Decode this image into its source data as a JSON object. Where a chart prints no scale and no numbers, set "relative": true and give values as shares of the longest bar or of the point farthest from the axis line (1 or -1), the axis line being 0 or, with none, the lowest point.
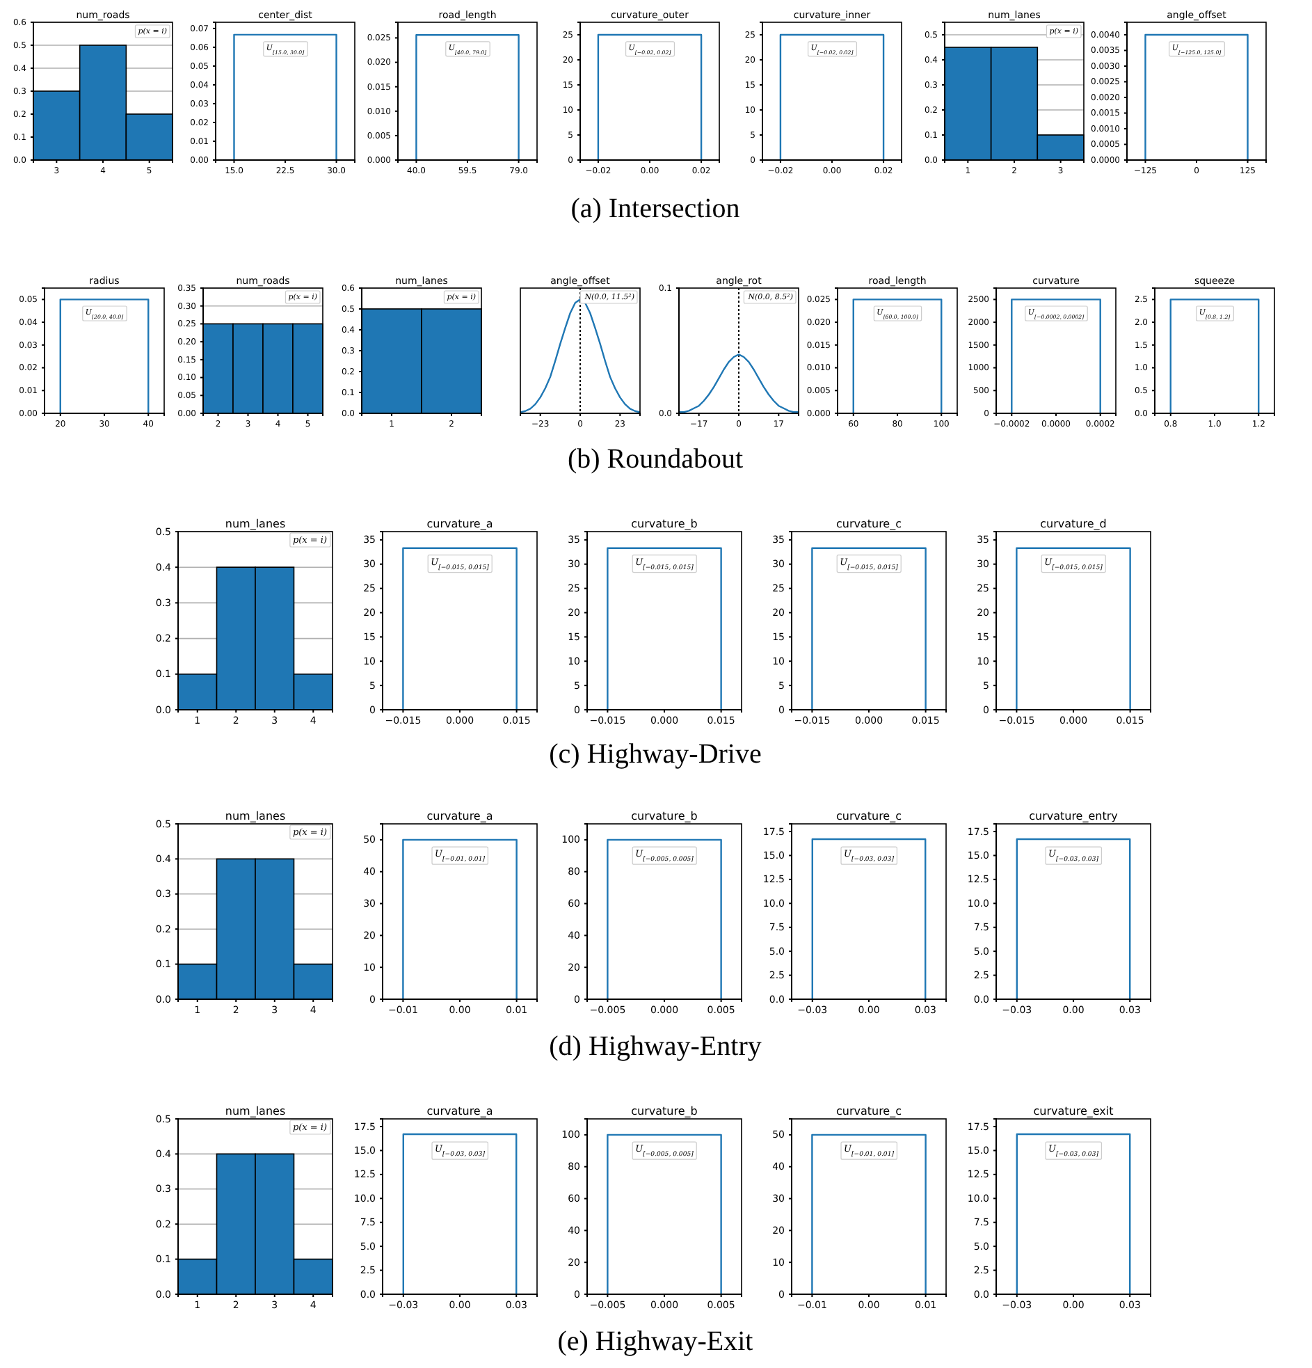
{
  "chart_data": [
    {
      "type": "bar",
      "title": "num_roads",
      "categories": [
        "3",
        "4",
        "5"
      ],
      "values": [
        0.3,
        0.5,
        0.2
      ],
      "color": "#1f77b4",
      "ylim": [
        0,
        0.6
      ],
      "yticks": [
        {
          "value": 0,
          "label": "0.0"
        },
        {
          "value": 0.1,
          "label": "0.1"
        },
        {
          "value": 0.2,
          "label": "0.2"
        },
        {
          "value": 0.3,
          "label": "0.3"
        },
        {
          "value": 0.4,
          "label": "0.4"
        },
        {
          "value": 0.5,
          "label": "0.5"
        },
        {
          "value": 0.6,
          "label": "0.6"
        }
      ],
      "grid": "y",
      "annotations": [
        "p(x = i)"
      ]
    },
    {
      "type": "line",
      "title": "center_dist",
      "x": [
        15,
        15,
        30,
        30
      ],
      "values": [
        0,
        0.0667,
        0.0667,
        0
      ],
      "color": "#1f77b4",
      "xlim": [
        12.3,
        32.7
      ],
      "xticks": [
        {
          "value": 15,
          "label": "15.0"
        },
        {
          "value": 22.5,
          "label": "22.5"
        },
        {
          "value": 30,
          "label": "30.0"
        }
      ],
      "ylim": [
        0,
        0.0733
      ],
      "yticks": [
        {
          "value": 0,
          "label": "0.00"
        },
        {
          "value": 0.01,
          "label": "0.01"
        },
        {
          "value": 0.02,
          "label": "0.02"
        },
        {
          "value": 0.03,
          "label": "0.03"
        },
        {
          "value": 0.04,
          "label": "0.04"
        },
        {
          "value": 0.05,
          "label": "0.05"
        },
        {
          "value": 0.06,
          "label": "0.06"
        },
        {
          "value": 0.07,
          "label": "0.07"
        }
      ],
      "annotations": [
        "U$_{[15.0, 30.0]}$"
      ]
    },
    {
      "type": "line",
      "title": "road_length",
      "x": [
        40,
        40,
        79,
        79
      ],
      "values": [
        0,
        0.0256,
        0.0256,
        0
      ],
      "color": "#1f77b4",
      "xlim": [
        33,
        86
      ],
      "xticks": [
        {
          "value": 40,
          "label": "40.0"
        },
        {
          "value": 59.5,
          "label": "59.5"
        },
        {
          "value": 79,
          "label": "79.0"
        }
      ],
      "ylim": [
        0,
        0.0282
      ],
      "yticks": [
        {
          "value": 0,
          "label": "0.000"
        },
        {
          "value": 0.005,
          "label": "0.005"
        },
        {
          "value": 0.01,
          "label": "0.010"
        },
        {
          "value": 0.015,
          "label": "0.015"
        },
        {
          "value": 0.02,
          "label": "0.020"
        },
        {
          "value": 0.025,
          "label": "0.025"
        }
      ],
      "annotations": [
        "U$_{[40.0, 79.0]}$"
      ]
    },
    {
      "type": "line",
      "title": "curvature_outer",
      "x": [
        -0.02,
        -0.02,
        0.02,
        0.02
      ],
      "values": [
        0,
        25,
        25,
        0
      ],
      "color": "#1f77b4",
      "xlim": [
        -0.027,
        0.027
      ],
      "xticks": [
        {
          "value": -0.02,
          "label": "−0.02"
        },
        {
          "value": 0,
          "label": "0.00"
        },
        {
          "value": 0.02,
          "label": "0.02"
        }
      ],
      "ylim": [
        0,
        27.5
      ],
      "yticks": [
        0,
        5,
        10,
        15,
        20,
        25
      ],
      "annotations": [
        "U$_{[−0.02, 0.02]}$"
      ]
    },
    {
      "type": "line",
      "title": "curvature_inner",
      "x": [
        -0.02,
        -0.02,
        0.02,
        0.02
      ],
      "values": [
        0,
        25,
        25,
        0
      ],
      "color": "#1f77b4",
      "xlim": [
        -0.027,
        0.027
      ],
      "xticks": [
        {
          "value": -0.02,
          "label": "−0.02"
        },
        {
          "value": 0,
          "label": "0.00"
        },
        {
          "value": 0.02,
          "label": "0.02"
        }
      ],
      "ylim": [
        0,
        27.5
      ],
      "yticks": [
        0,
        5,
        10,
        15,
        20,
        25
      ],
      "annotations": [
        "U$_{[−0.02, 0.02]}$"
      ]
    },
    {
      "type": "bar",
      "title": "num_lanes",
      "categories": [
        "1",
        "2",
        "3"
      ],
      "values": [
        0.45,
        0.45,
        0.1
      ],
      "color": "#1f77b4",
      "ylim": [
        0,
        0.55
      ],
      "yticks": [
        {
          "value": 0,
          "label": "0.0"
        },
        {
          "value": 0.1,
          "label": "0.1"
        },
        {
          "value": 0.2,
          "label": "0.2"
        },
        {
          "value": 0.3,
          "label": "0.3"
        },
        {
          "value": 0.4,
          "label": "0.4"
        },
        {
          "value": 0.5,
          "label": "0.5"
        }
      ],
      "grid": "y",
      "annotations": [
        "p(x = i)"
      ]
    },
    {
      "type": "line",
      "title": "angle_offset",
      "x": [
        -125,
        -125,
        125,
        125
      ],
      "values": [
        0,
        0.004,
        0.004,
        0
      ],
      "color": "#1f77b4",
      "xlim": [
        -170,
        170
      ],
      "xticks": [
        {
          "value": -125,
          "label": "−125"
        },
        0,
        125
      ],
      "ylim": [
        0,
        0.0044
      ],
      "yticks": [
        {
          "value": 0,
          "label": "0.0000"
        },
        {
          "value": 0.0005,
          "label": "0.0005"
        },
        {
          "value": 0.001,
          "label": "0.0010"
        },
        {
          "value": 0.0015,
          "label": "0.0015"
        },
        {
          "value": 0.002,
          "label": "0.0020"
        },
        {
          "value": 0.0025,
          "label": "0.0025"
        },
        {
          "value": 0.003,
          "label": "0.0030"
        },
        {
          "value": 0.0035,
          "label": "0.0035"
        },
        {
          "value": 0.004,
          "label": "0.0040"
        }
      ],
      "annotations": [
        "U$_{[−125.0, 125.0]}$"
      ]
    },
    {
      "type": "other",
      "title": "(a) Intersection"
    },
    {
      "type": "line",
      "title": "radius",
      "x": [
        20,
        20,
        40,
        40
      ],
      "values": [
        0,
        0.05,
        0.05,
        0
      ],
      "color": "#1f77b4",
      "xlim": [
        16.4,
        43.6
      ],
      "xticks": [
        20,
        30,
        40
      ],
      "ylim": [
        0,
        0.055
      ],
      "yticks": [
        {
          "value": 0,
          "label": "0.00"
        },
        {
          "value": 0.01,
          "label": "0.01"
        },
        {
          "value": 0.02,
          "label": "0.02"
        },
        {
          "value": 0.03,
          "label": "0.03"
        },
        {
          "value": 0.04,
          "label": "0.04"
        },
        {
          "value": 0.05,
          "label": "0.05"
        }
      ],
      "annotations": [
        "U$_{[20.0, 40.0]}$"
      ]
    },
    {
      "type": "bar",
      "title": "num_roads",
      "categories": [
        "2",
        "3",
        "4",
        "5"
      ],
      "values": [
        0.25,
        0.25,
        0.25,
        0.25
      ],
      "color": "#1f77b4",
      "ylim": [
        0,
        0.35
      ],
      "yticks": [
        {
          "value": 0,
          "label": "0.00"
        },
        {
          "value": 0.05,
          "label": "0.05"
        },
        {
          "value": 0.1,
          "label": "0.10"
        },
        {
          "value": 0.15,
          "label": "0.15"
        },
        {
          "value": 0.2,
          "label": "0.20"
        },
        {
          "value": 0.25,
          "label": "0.25"
        },
        {
          "value": 0.3,
          "label": "0.30"
        },
        {
          "value": 0.35,
          "label": "0.35"
        }
      ],
      "grid": "y",
      "annotations": [
        "p(x = i)"
      ]
    },
    {
      "type": "bar",
      "title": "num_lanes",
      "categories": [
        "1",
        "2"
      ],
      "values": [
        0.5,
        0.5
      ],
      "color": "#1f77b4",
      "ylim": [
        0,
        0.6
      ],
      "yticks": [
        {
          "value": 0,
          "label": "0.0"
        },
        {
          "value": 0.1,
          "label": "0.1"
        },
        {
          "value": 0.2,
          "label": "0.2"
        },
        {
          "value": 0.3,
          "label": "0.3"
        },
        {
          "value": 0.4,
          "label": "0.4"
        },
        {
          "value": 0.5,
          "label": "0.5"
        },
        {
          "value": 0.6,
          "label": "0.6"
        }
      ],
      "grid": "y",
      "annotations": [
        "p(x = i)"
      ]
    },
    {
      "type": "line",
      "title": "angle_offset",
      "relative": true,
      "x": [
        -34.5,
        -31.625,
        -28.75,
        -25.875,
        -23,
        -20.125,
        -17.25,
        -14.375,
        -11.5,
        -8.625,
        -5.75,
        -2.875,
        0,
        2.875,
        5.75,
        8.625,
        11.5,
        14.375,
        17.25,
        20.125,
        23,
        25.875,
        28.75,
        31.625,
        34.5
      ],
      "values": [
        0.01,
        0.02,
        0.04,
        0.08,
        0.14,
        0.22,
        0.32,
        0.46,
        0.61,
        0.75,
        0.88,
        0.97,
        1,
        0.97,
        0.88,
        0.75,
        0.61,
        0.46,
        0.32,
        0.22,
        0.14,
        0.08,
        0.04,
        0.02,
        0.01
      ],
      "color": "#1f77b4",
      "xlim": [
        -34.5,
        34.5
      ],
      "xticks": [
        {
          "value": -23,
          "label": "−23"
        },
        0,
        23
      ],
      "ref_lines": [
        {
          "axis": "x",
          "value": 0,
          "color": "#000000",
          "line_style": "dotted"
        }
      ],
      "annotations": [
        "N(0.0, 11.5²)"
      ]
    },
    {
      "type": "line",
      "title": "angle_rot",
      "x": [
        -25.5,
        -23.375,
        -21.25,
        -19.125,
        -17,
        -14.875,
        -12.75,
        -10.625,
        -8.5,
        -6.375,
        -4.25,
        -2.125,
        0,
        2.125,
        4.25,
        6.375,
        8.5,
        10.625,
        12.75,
        14.875,
        17,
        19.125,
        21.25,
        23.375,
        25.5
      ],
      "values": [
        0.001,
        0.001,
        0.002,
        0.004,
        0.006,
        0.01,
        0.015,
        0.021,
        0.028,
        0.035,
        0.041,
        0.045,
        0.047,
        0.045,
        0.041,
        0.035,
        0.028,
        0.021,
        0.015,
        0.01,
        0.006,
        0.004,
        0.002,
        0.001,
        0.001
      ],
      "color": "#1f77b4",
      "xlim": [
        -25.5,
        25.5
      ],
      "xticks": [
        {
          "value": -17,
          "label": "−17"
        },
        0,
        17
      ],
      "ylim": [
        0,
        0.1
      ],
      "yticks": [
        {
          "value": 0,
          "label": "0.0"
        },
        0.1
      ],
      "ref_lines": [
        {
          "axis": "x",
          "value": 0,
          "color": "#000000",
          "line_style": "dotted"
        }
      ],
      "annotations": [
        "N(0.0, 8.5²)"
      ]
    },
    {
      "type": "line",
      "title": "road_length",
      "x": [
        60,
        60,
        100,
        100
      ],
      "values": [
        0,
        0.025,
        0.025,
        0
      ],
      "color": "#1f77b4",
      "xlim": [
        52.8,
        107.2
      ],
      "xticks": [
        60,
        80,
        100
      ],
      "ylim": [
        0,
        0.0275
      ],
      "yticks": [
        {
          "value": 0,
          "label": "0.000"
        },
        {
          "value": 0.005,
          "label": "0.005"
        },
        {
          "value": 0.01,
          "label": "0.010"
        },
        {
          "value": 0.015,
          "label": "0.015"
        },
        {
          "value": 0.02,
          "label": "0.020"
        },
        {
          "value": 0.025,
          "label": "0.025"
        }
      ],
      "annotations": [
        "U$_{[60.0, 100.0]}$"
      ]
    },
    {
      "type": "line",
      "title": "curvature",
      "x": [
        -0.0002,
        -0.0002,
        0.0002,
        0.0002
      ],
      "values": [
        0,
        2500,
        2500,
        0
      ],
      "color": "#1f77b4",
      "xlim": [
        -0.00027,
        0.00027
      ],
      "xticks": [
        {
          "value": -0.0002,
          "label": "−0.0002"
        },
        {
          "value": 0,
          "label": "0.0000"
        },
        {
          "value": 0.0002,
          "label": "0.0002"
        }
      ],
      "ylim": [
        0,
        2750
      ],
      "yticks": [
        0,
        500,
        1000,
        1500,
        2000,
        2500
      ],
      "annotations": [
        "U$_{[−0.0002, 0.0002]}$"
      ]
    },
    {
      "type": "line",
      "title": "squeeze",
      "x": [
        0.8,
        0.8,
        1.2,
        1.2
      ],
      "values": [
        0,
        2.5,
        2.5,
        0
      ],
      "color": "#1f77b4",
      "xlim": [
        0.728,
        1.272
      ],
      "xticks": [
        0.8,
        {
          "value": 1,
          "label": "1.0"
        },
        1.2
      ],
      "ylim": [
        0,
        2.75
      ],
      "yticks": [
        {
          "value": 0,
          "label": "0.0"
        },
        0.5,
        {
          "value": 1,
          "label": "1.0"
        },
        1.5,
        {
          "value": 2,
          "label": "2.0"
        },
        2.5
      ],
      "annotations": [
        "U$_{[0.8, 1.2]}$"
      ]
    },
    {
      "type": "other",
      "title": "(b) Roundabout"
    },
    {
      "type": "bar",
      "title": "num_lanes",
      "categories": [
        "1",
        "2",
        "3",
        "4"
      ],
      "values": [
        0.1,
        0.4,
        0.4,
        0.1
      ],
      "color": "#1f77b4",
      "ylim": [
        0,
        0.5
      ],
      "yticks": [
        {
          "value": 0,
          "label": "0.0"
        },
        0.1,
        0.2,
        0.3,
        0.4,
        0.5
      ],
      "grid": "y",
      "annotations": [
        "p(x = i)"
      ]
    },
    {
      "type": "line",
      "title": "curvature_a",
      "x": [
        -0.015,
        -0.015,
        0.015,
        0.015
      ],
      "values": [
        0,
        33.3,
        33.3,
        0
      ],
      "color": "#1f77b4",
      "xlim": [
        -0.0204,
        0.0204
      ],
      "xticks": [
        {
          "value": -0.015,
          "label": "−0.015"
        },
        {
          "value": 0,
          "label": "0.000"
        },
        0.015
      ],
      "ylim": [
        0,
        36.7
      ],
      "yticks": [
        0,
        5,
        10,
        15,
        20,
        25,
        30,
        35
      ],
      "annotations": [
        "U$_{[−0.015, 0.015]}$"
      ]
    },
    {
      "type": "line",
      "title": "curvature_b",
      "x": [
        -0.015,
        -0.015,
        0.015,
        0.015
      ],
      "values": [
        0,
        33.3,
        33.3,
        0
      ],
      "color": "#1f77b4",
      "xlim": [
        -0.0204,
        0.0204
      ],
      "xticks": [
        {
          "value": -0.015,
          "label": "−0.015"
        },
        {
          "value": 0,
          "label": "0.000"
        },
        0.015
      ],
      "ylim": [
        0,
        36.7
      ],
      "yticks": [
        0,
        5,
        10,
        15,
        20,
        25,
        30,
        35
      ],
      "annotations": [
        "U$_{[−0.015, 0.015]}$"
      ]
    },
    {
      "type": "line",
      "title": "curvature_c",
      "x": [
        -0.015,
        -0.015,
        0.015,
        0.015
      ],
      "values": [
        0,
        33.3,
        33.3,
        0
      ],
      "color": "#1f77b4",
      "xlim": [
        -0.0204,
        0.0204
      ],
      "xticks": [
        {
          "value": -0.015,
          "label": "−0.015"
        },
        {
          "value": 0,
          "label": "0.000"
        },
        0.015
      ],
      "ylim": [
        0,
        36.7
      ],
      "yticks": [
        0,
        5,
        10,
        15,
        20,
        25,
        30,
        35
      ],
      "annotations": [
        "U$_{[−0.015, 0.015]}$"
      ]
    },
    {
      "type": "line",
      "title": "curvature_d",
      "x": [
        -0.015,
        -0.015,
        0.015,
        0.015
      ],
      "values": [
        0,
        33.3,
        33.3,
        0
      ],
      "color": "#1f77b4",
      "xlim": [
        -0.0204,
        0.0204
      ],
      "xticks": [
        {
          "value": -0.015,
          "label": "−0.015"
        },
        {
          "value": 0,
          "label": "0.000"
        },
        0.015
      ],
      "ylim": [
        0,
        36.7
      ],
      "yticks": [
        0,
        5,
        10,
        15,
        20,
        25,
        30,
        35
      ],
      "annotations": [
        "U$_{[−0.015, 0.015]}$"
      ]
    },
    {
      "type": "other",
      "title": "(c) Highway-Drive"
    },
    {
      "type": "bar",
      "title": "num_lanes",
      "categories": [
        "1",
        "2",
        "3",
        "4"
      ],
      "values": [
        0.1,
        0.4,
        0.4,
        0.1
      ],
      "color": "#1f77b4",
      "ylim": [
        0,
        0.5
      ],
      "yticks": [
        {
          "value": 0,
          "label": "0.0"
        },
        0.1,
        0.2,
        0.3,
        0.4,
        0.5
      ],
      "grid": "y",
      "annotations": [
        "p(x = i)"
      ]
    },
    {
      "type": "line",
      "title": "curvature_a",
      "x": [
        -0.01,
        -0.01,
        0.01,
        0.01
      ],
      "values": [
        0,
        50,
        50,
        0
      ],
      "color": "#1f77b4",
      "xlim": [
        -0.0136,
        0.0136
      ],
      "xticks": [
        {
          "value": -0.01,
          "label": "−0.01"
        },
        {
          "value": 0,
          "label": "0.00"
        },
        0.01
      ],
      "ylim": [
        0,
        55
      ],
      "yticks": [
        0,
        10,
        20,
        30,
        40,
        50
      ],
      "annotations": [
        "U$_{[−0.01, 0.01]}$"
      ]
    },
    {
      "type": "line",
      "title": "curvature_b",
      "x": [
        -0.005,
        -0.005,
        0.005,
        0.005
      ],
      "values": [
        0,
        100,
        100,
        0
      ],
      "color": "#1f77b4",
      "xlim": [
        -0.0068,
        0.0068
      ],
      "xticks": [
        {
          "value": -0.005,
          "label": "−0.005"
        },
        {
          "value": 0,
          "label": "0.000"
        },
        0.005
      ],
      "ylim": [
        0,
        110
      ],
      "yticks": [
        0,
        20,
        40,
        60,
        80,
        100
      ],
      "annotations": [
        "U$_{[−0.005, 0.005]}$"
      ]
    },
    {
      "type": "line",
      "title": "curvature_c",
      "x": [
        -0.03,
        -0.03,
        0.03,
        0.03
      ],
      "values": [
        0,
        16.7,
        16.7,
        0
      ],
      "color": "#1f77b4",
      "xlim": [
        -0.041,
        0.041
      ],
      "xticks": [
        {
          "value": -0.03,
          "label": "−0.03"
        },
        {
          "value": 0,
          "label": "0.00"
        },
        0.03
      ],
      "ylim": [
        0,
        18.3
      ],
      "yticks": [
        {
          "value": 0,
          "label": "0.0"
        },
        2.5,
        {
          "value": 5,
          "label": "5.0"
        },
        7.5,
        {
          "value": 10,
          "label": "10.0"
        },
        12.5,
        {
          "value": 15,
          "label": "15.0"
        },
        17.5
      ],
      "annotations": [
        "U$_{[−0.03, 0.03]}$"
      ]
    },
    {
      "type": "line",
      "title": "curvature_entry",
      "x": [
        -0.03,
        -0.03,
        0.03,
        0.03
      ],
      "values": [
        0,
        16.7,
        16.7,
        0
      ],
      "color": "#1f77b4",
      "xlim": [
        -0.041,
        0.041
      ],
      "xticks": [
        {
          "value": -0.03,
          "label": "−0.03"
        },
        {
          "value": 0,
          "label": "0.00"
        },
        0.03
      ],
      "ylim": [
        0,
        18.3
      ],
      "yticks": [
        {
          "value": 0,
          "label": "0.0"
        },
        2.5,
        {
          "value": 5,
          "label": "5.0"
        },
        7.5,
        {
          "value": 10,
          "label": "10.0"
        },
        12.5,
        {
          "value": 15,
          "label": "15.0"
        },
        17.5
      ],
      "annotations": [
        "U$_{[−0.03, 0.03]}$"
      ]
    },
    {
      "type": "other",
      "title": "(d) Highway-Entry"
    },
    {
      "type": "bar",
      "title": "num_lanes",
      "categories": [
        "1",
        "2",
        "3",
        "4"
      ],
      "values": [
        0.1,
        0.4,
        0.4,
        0.1
      ],
      "color": "#1f77b4",
      "ylim": [
        0,
        0.5
      ],
      "yticks": [
        {
          "value": 0,
          "label": "0.0"
        },
        0.1,
        0.2,
        0.3,
        0.4,
        0.5
      ],
      "grid": "y",
      "annotations": [
        "p(x = i)"
      ]
    },
    {
      "type": "line",
      "title": "curvature_a",
      "x": [
        -0.03,
        -0.03,
        0.03,
        0.03
      ],
      "values": [
        0,
        16.7,
        16.7,
        0
      ],
      "color": "#1f77b4",
      "xlim": [
        -0.041,
        0.041
      ],
      "xticks": [
        {
          "value": -0.03,
          "label": "−0.03"
        },
        {
          "value": 0,
          "label": "0.00"
        },
        0.03
      ],
      "ylim": [
        0,
        18.3
      ],
      "yticks": [
        {
          "value": 0,
          "label": "0.0"
        },
        2.5,
        {
          "value": 5,
          "label": "5.0"
        },
        7.5,
        {
          "value": 10,
          "label": "10.0"
        },
        12.5,
        {
          "value": 15,
          "label": "15.0"
        },
        17.5
      ],
      "annotations": [
        "U$_{[−0.03, 0.03]}$"
      ]
    },
    {
      "type": "line",
      "title": "curvature_b",
      "x": [
        -0.005,
        -0.005,
        0.005,
        0.005
      ],
      "values": [
        0,
        100,
        100,
        0
      ],
      "color": "#1f77b4",
      "xlim": [
        -0.0068,
        0.0068
      ],
      "xticks": [
        {
          "value": -0.005,
          "label": "−0.005"
        },
        {
          "value": 0,
          "label": "0.000"
        },
        0.005
      ],
      "ylim": [
        0,
        110
      ],
      "yticks": [
        0,
        20,
        40,
        60,
        80,
        100
      ],
      "annotations": [
        "U$_{[−0.005, 0.005]}$"
      ]
    },
    {
      "type": "line",
      "title": "curvature_c",
      "x": [
        -0.01,
        -0.01,
        0.01,
        0.01
      ],
      "values": [
        0,
        50,
        50,
        0
      ],
      "color": "#1f77b4",
      "xlim": [
        -0.0136,
        0.0136
      ],
      "xticks": [
        {
          "value": -0.01,
          "label": "−0.01"
        },
        {
          "value": 0,
          "label": "0.00"
        },
        0.01
      ],
      "ylim": [
        0,
        55
      ],
      "yticks": [
        0,
        10,
        20,
        30,
        40,
        50
      ],
      "annotations": [
        "U$_{[−0.01, 0.01]}$"
      ]
    },
    {
      "type": "line",
      "title": "curvature_exit",
      "x": [
        -0.03,
        -0.03,
        0.03,
        0.03
      ],
      "values": [
        0,
        16.7,
        16.7,
        0
      ],
      "color": "#1f77b4",
      "xlim": [
        -0.041,
        0.041
      ],
      "xticks": [
        {
          "value": -0.03,
          "label": "−0.03"
        },
        {
          "value": 0,
          "label": "0.00"
        },
        0.03
      ],
      "ylim": [
        0,
        18.3
      ],
      "yticks": [
        {
          "value": 0,
          "label": "0.0"
        },
        2.5,
        {
          "value": 5,
          "label": "5.0"
        },
        7.5,
        {
          "value": 10,
          "label": "10.0"
        },
        12.5,
        {
          "value": 15,
          "label": "15.0"
        },
        17.5
      ],
      "annotations": [
        "U$_{[−0.03, 0.03]}$"
      ]
    },
    {
      "type": "other",
      "title": "(e) Highway-Exit"
    }
  ]
}
